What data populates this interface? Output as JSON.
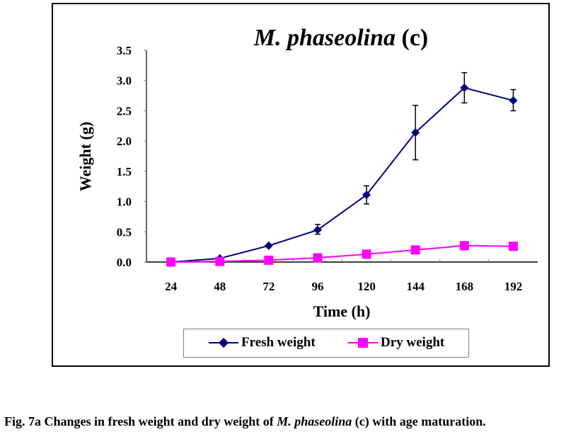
{
  "chart_data": {
    "type": "line",
    "title_italic": "M. phaseolina",
    "title_rest": " (c)",
    "xlabel": "Time (h)",
    "ylabel": "Weight (g)",
    "categories": [
      "24",
      "48",
      "72",
      "96",
      "120",
      "144",
      "168",
      "192"
    ],
    "ylim": [
      0,
      3.5
    ],
    "yticks": [
      "0.0",
      "0.5",
      "1.0",
      "1.5",
      "2.0",
      "2.5",
      "3.0",
      "3.5"
    ],
    "ytick_values": [
      0,
      0.5,
      1.0,
      1.5,
      2.0,
      2.5,
      3.0,
      3.5
    ],
    "grid": false,
    "legend_position": "bottom",
    "series": [
      {
        "name": "Fresh weight",
        "color": "#000080",
        "marker": "diamond",
        "values": [
          0.0,
          0.06,
          0.27,
          0.53,
          1.11,
          2.14,
          2.88,
          2.67
        ],
        "error_low": [
          null,
          null,
          0.25,
          0.46,
          0.96,
          1.69,
          2.63,
          2.5
        ],
        "error_high": [
          null,
          null,
          0.29,
          0.62,
          1.26,
          2.59,
          3.13,
          2.85
        ]
      },
      {
        "name": "Dry weight",
        "color": "#FF00FF",
        "marker": "square",
        "values": [
          0.0,
          0.01,
          0.03,
          0.07,
          0.13,
          0.2,
          0.27,
          0.26
        ]
      }
    ]
  },
  "caption": {
    "prefix": "Fig. 7a Changes in fresh weight and dry weight of ",
    "italic": "M. phaseolina",
    "suffix": " (c) with age maturation."
  }
}
